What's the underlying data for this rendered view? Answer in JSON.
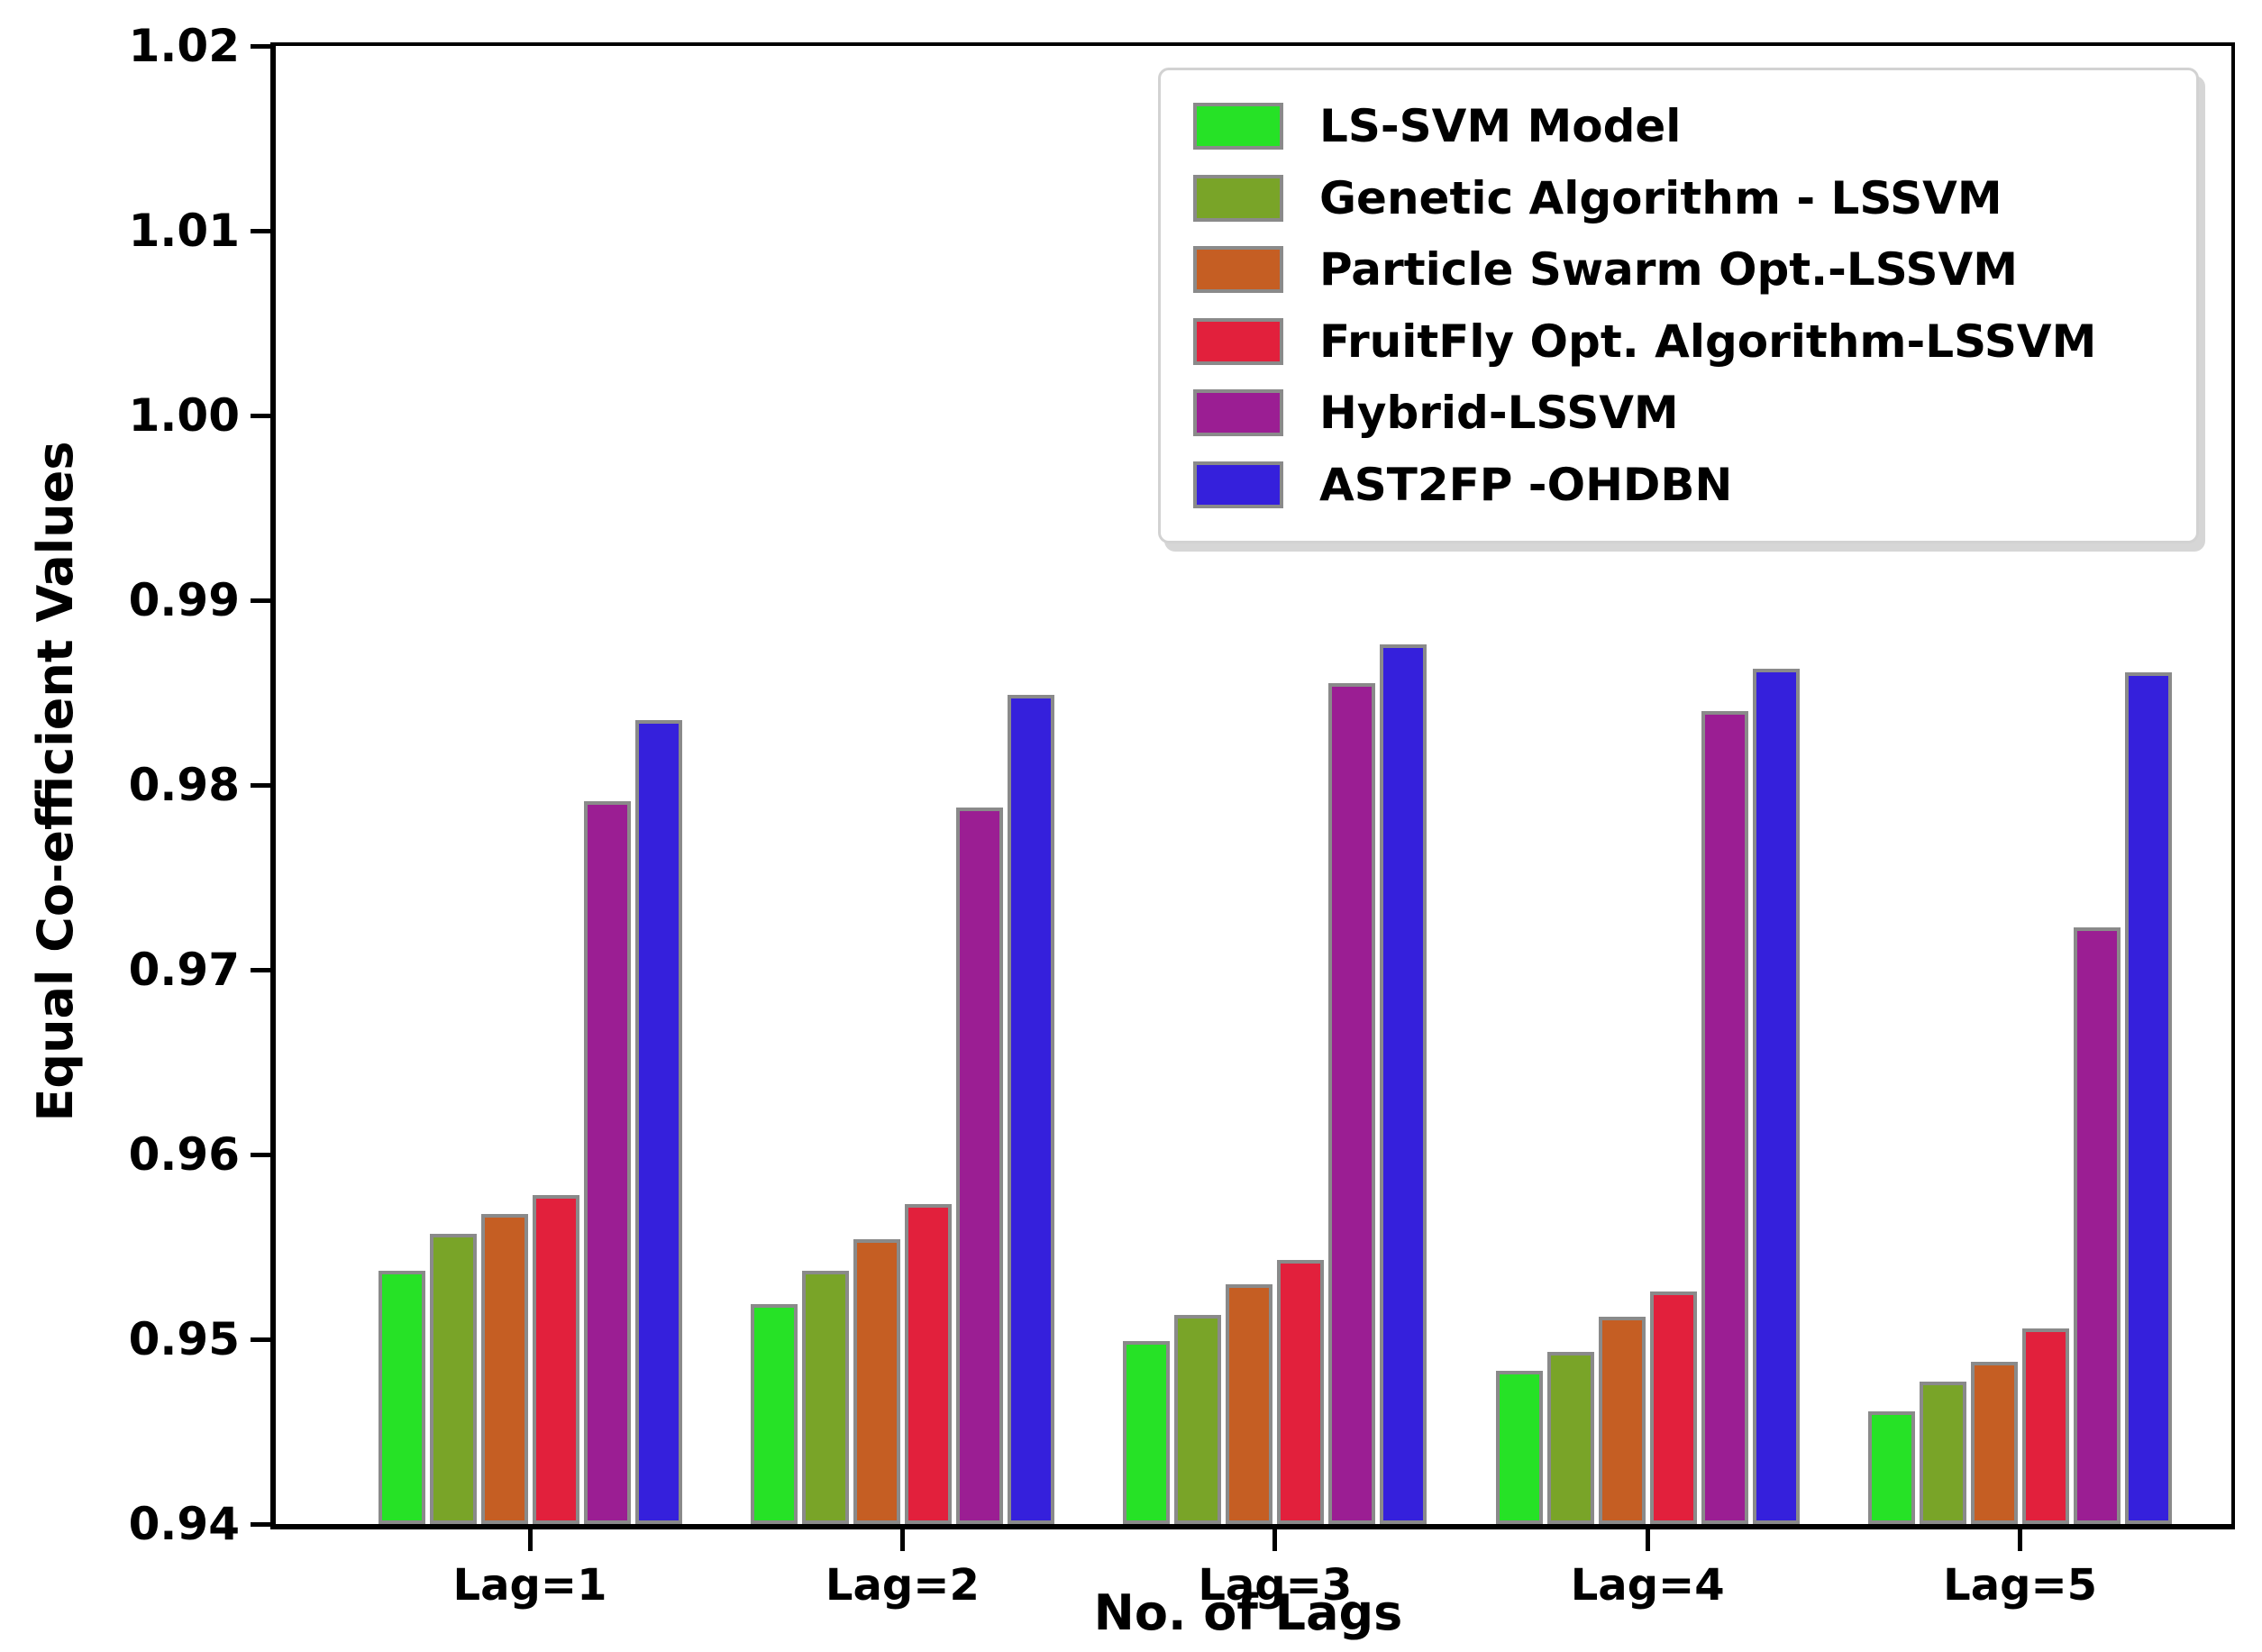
{
  "figure": {
    "background_color": "#ffffff",
    "text_color": "#000000"
  },
  "chart_data": {
    "type": "bar",
    "title": "",
    "xlabel": "No. of Lags",
    "ylabel": "Equal Co-efficient Values",
    "ylim": [
      0.94,
      1.02
    ],
    "ytick_values": [
      0.94,
      0.95,
      0.96,
      0.97,
      0.98,
      0.99,
      1.0,
      1.01,
      1.02
    ],
    "ytick_labels": [
      "0.94",
      "0.95",
      "0.96",
      "0.97",
      "0.98",
      "0.99",
      "1.00",
      "1.01",
      "1.02"
    ],
    "categories": [
      "Lag=1",
      "Lag=2",
      "Lag=3",
      "Lag=4",
      "Lag=5"
    ],
    "grid": false,
    "legend_position": "upper right",
    "bar_edge_color": "#8a8a8a",
    "series": [
      {
        "name": "LS-SVM Model",
        "color": "#26e226",
        "values": [
          0.9537,
          0.9519,
          0.9499,
          0.9483,
          0.9461
        ]
      },
      {
        "name": "Genetic Algorithm - LSSVM",
        "color": "#79a428",
        "values": [
          0.9557,
          0.9537,
          0.9513,
          0.9493,
          0.9477
        ]
      },
      {
        "name": "Particle Swarm Opt.-LSSVM",
        "color": "#c55e23",
        "values": [
          0.9568,
          0.9554,
          0.953,
          0.9512,
          0.9488
        ]
      },
      {
        "name": "FruitFly Opt. Algorithm-LSSVM",
        "color": "#e2203c",
        "values": [
          0.9578,
          0.9573,
          0.9543,
          0.9526,
          0.9506
        ]
      },
      {
        "name": "Hybrid-LSSVM",
        "color": "#9b1e93",
        "values": [
          0.9791,
          0.9788,
          0.9855,
          0.984,
          0.9723
        ]
      },
      {
        "name": "AST2FP -OHDBN",
        "color": "#3520dc",
        "values": [
          0.9835,
          0.9849,
          0.9876,
          0.9863,
          0.9861
        ]
      }
    ]
  }
}
